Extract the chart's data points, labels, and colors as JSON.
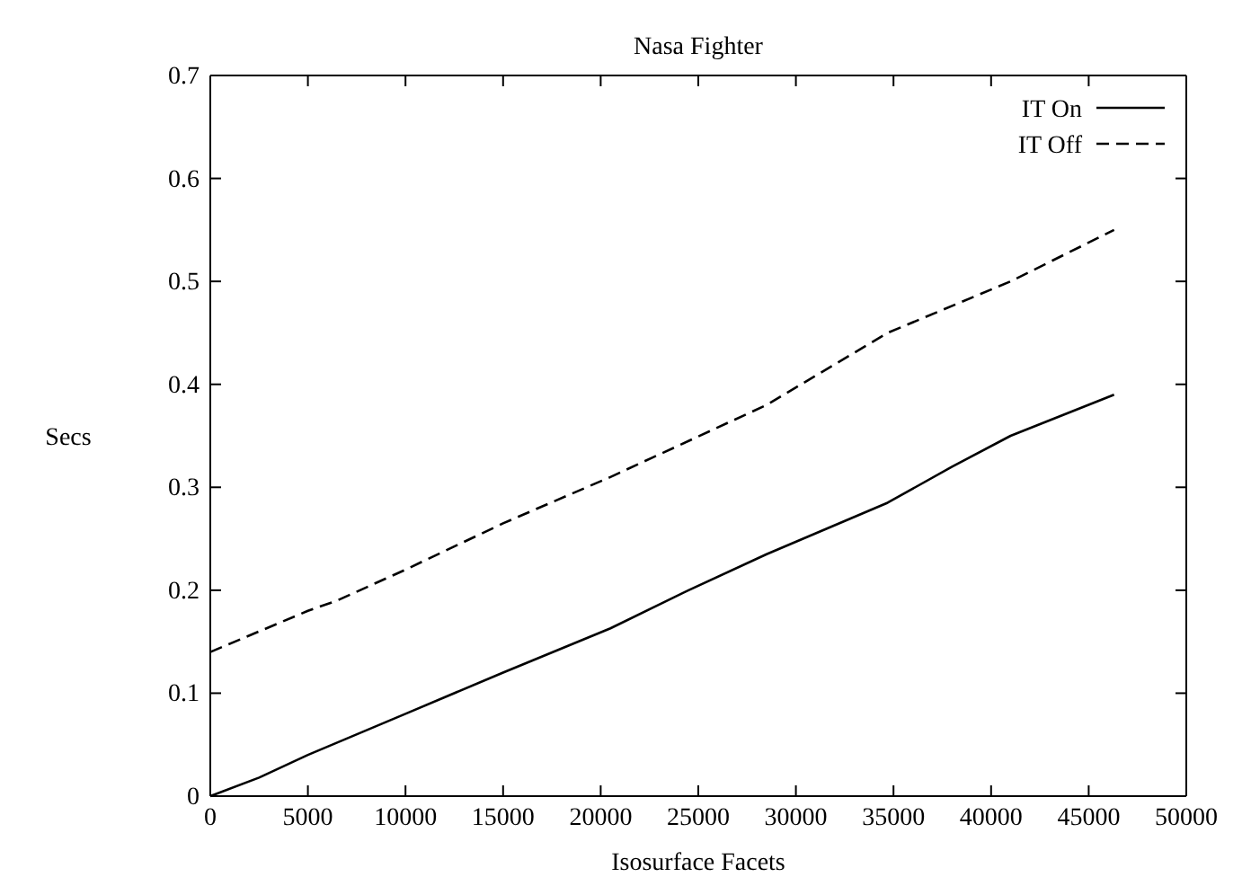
{
  "chart_data": {
    "type": "line",
    "title": "Nasa Fighter",
    "xlabel": "Isosurface Facets",
    "ylabel": "Secs",
    "xlim": [
      0,
      50000
    ],
    "xticks": [
      0,
      5000,
      10000,
      15000,
      20000,
      25000,
      30000,
      35000,
      40000,
      45000,
      50000
    ],
    "ylim": [
      0,
      0.7
    ],
    "yticks": [
      0,
      0.1,
      0.2,
      0.3,
      0.4,
      0.5,
      0.6,
      0.7
    ],
    "legend": "top right",
    "grid": false,
    "marker": "none",
    "series": [
      {
        "name": "IT On",
        "color": "#000000",
        "line_style": "solid",
        "x": [
          0,
          2500,
          5000,
          10000,
          15000,
          20500,
          24500,
          28500,
          34700,
          38000,
          41000,
          46300
        ],
        "values": [
          0,
          0.018,
          0.04,
          0.08,
          0.12,
          0.163,
          0.2,
          0.235,
          0.285,
          0.32,
          0.35,
          0.39
        ]
      },
      {
        "name": "IT Off",
        "color": "#000000",
        "line_style": "dashed",
        "x": [
          0,
          5000,
          6500,
          10000,
          15000,
          20500,
          24500,
          28500,
          34700,
          41000,
          46300
        ],
        "values": [
          0.14,
          0.18,
          0.19,
          0.22,
          0.265,
          0.31,
          0.345,
          0.38,
          0.45,
          0.5,
          0.55
        ]
      }
    ]
  }
}
